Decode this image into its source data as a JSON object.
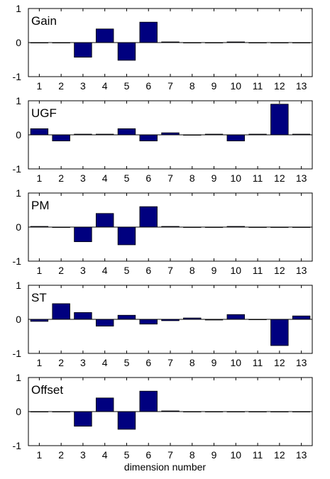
{
  "figure": {
    "xlabel": "dimension number",
    "bar_color": "#00007f",
    "axis_color": "#000000",
    "background": "#ffffff"
  },
  "chart_data": [
    {
      "type": "bar",
      "title": "Gain",
      "categories": [
        "1",
        "2",
        "3",
        "4",
        "5",
        "6",
        "7",
        "8",
        "9",
        "10",
        "11",
        "12",
        "13"
      ],
      "values": [
        0,
        0,
        -0.43,
        0.4,
        -0.52,
        0.6,
        0.02,
        0,
        0,
        0.02,
        0,
        0,
        0
      ],
      "ylim": [
        -1,
        1
      ],
      "yticks": [
        "1",
        "0",
        "-1"
      ],
      "grid": false
    },
    {
      "type": "bar",
      "title": "UGF",
      "categories": [
        "1",
        "2",
        "3",
        "4",
        "5",
        "6",
        "7",
        "8",
        "9",
        "10",
        "11",
        "12",
        "13"
      ],
      "values": [
        0.18,
        -0.18,
        0.02,
        0.02,
        0.18,
        -0.18,
        0.06,
        0,
        0.02,
        -0.18,
        0.02,
        0.9,
        0.02
      ],
      "ylim": [
        -1,
        1
      ],
      "yticks": [
        "1",
        "0",
        "-1"
      ],
      "grid": false
    },
    {
      "type": "bar",
      "title": "PM",
      "categories": [
        "1",
        "2",
        "3",
        "4",
        "5",
        "6",
        "7",
        "8",
        "9",
        "10",
        "11",
        "12",
        "13"
      ],
      "values": [
        0.02,
        0,
        -0.43,
        0.4,
        -0.52,
        0.6,
        0.02,
        0,
        0,
        0.02,
        0,
        0,
        0
      ],
      "ylim": [
        -1,
        1
      ],
      "yticks": [
        "1",
        "0",
        "-1"
      ],
      "grid": false
    },
    {
      "type": "bar",
      "title": "ST",
      "categories": [
        "1",
        "2",
        "3",
        "4",
        "5",
        "6",
        "7",
        "8",
        "9",
        "10",
        "11",
        "12",
        "13"
      ],
      "values": [
        -0.06,
        0.46,
        0.2,
        -0.2,
        0.12,
        -0.14,
        -0.04,
        0.04,
        -0.02,
        0.14,
        0,
        -0.77,
        0.1
      ],
      "ylim": [
        -1,
        1
      ],
      "yticks": [
        "1",
        "0",
        "-1"
      ],
      "grid": false
    },
    {
      "type": "bar",
      "title": "Offset",
      "categories": [
        "1",
        "2",
        "3",
        "4",
        "5",
        "6",
        "7",
        "8",
        "9",
        "10",
        "11",
        "12",
        "13"
      ],
      "values": [
        0,
        0,
        -0.43,
        0.4,
        -0.52,
        0.6,
        0.02,
        0,
        0,
        0,
        0,
        0,
        0
      ],
      "ylim": [
        -1,
        1
      ],
      "yticks": [
        "1",
        "0",
        "-1"
      ],
      "grid": false
    }
  ]
}
